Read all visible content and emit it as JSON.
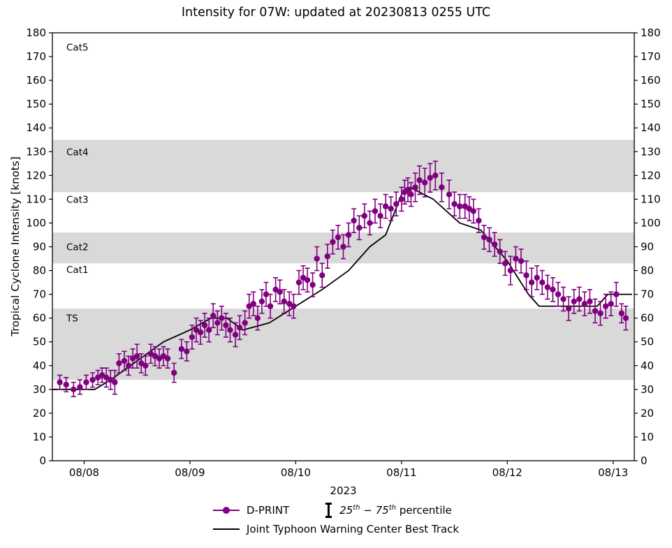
{
  "chart_data": {
    "type": "scatter",
    "title": "Intensity for 07W: updated at 20230813 0255 UTC",
    "ylabel": "Tropical Cyclone Intensity [knots]",
    "xlabel": "2023",
    "ylim": [
      0,
      180
    ],
    "xlim": [
      -0.3,
      5.2
    ],
    "yticks": [
      0,
      10,
      20,
      30,
      40,
      50,
      60,
      70,
      80,
      90,
      100,
      110,
      120,
      130,
      140,
      150,
      160,
      170,
      180
    ],
    "xticks": [
      {
        "pos": 0,
        "label": "08/08"
      },
      {
        "pos": 1,
        "label": "08/09"
      },
      {
        "pos": 2,
        "label": "08/10"
      },
      {
        "pos": 3,
        "label": "08/11"
      },
      {
        "pos": 4,
        "label": "08/12"
      },
      {
        "pos": 5,
        "label": "08/13"
      }
    ],
    "band_color": "#d9d9d9",
    "bands": [
      {
        "from": 34,
        "to": 64
      },
      {
        "from": 83,
        "to": 96
      },
      {
        "from": 113,
        "to": 135
      }
    ],
    "category_labels": [
      {
        "text": "Cat5",
        "y": 174
      },
      {
        "text": "Cat4",
        "y": 130
      },
      {
        "text": "Cat3",
        "y": 110
      },
      {
        "text": "Cat2",
        "y": 90
      },
      {
        "text": "Cat1",
        "y": 80.5
      },
      {
        "text": "TS",
        "y": 60
      }
    ],
    "series": [
      {
        "name": "D-PRINT",
        "type": "scatter_with_error_bars",
        "color": "#800080",
        "points_format": [
          "day_offset_from_0808",
          "knots",
          "percentile_halfwidth"
        ],
        "points": [
          [
            -0.23,
            33,
            3
          ],
          [
            -0.17,
            32,
            3
          ],
          [
            -0.1,
            30,
            3
          ],
          [
            -0.04,
            31,
            3
          ],
          [
            0.02,
            33,
            3
          ],
          [
            0.08,
            34,
            3
          ],
          [
            0.13,
            35,
            3
          ],
          [
            0.17,
            36,
            3
          ],
          [
            0.21,
            35,
            4
          ],
          [
            0.25,
            34,
            4
          ],
          [
            0.29,
            33,
            5
          ],
          [
            0.33,
            41,
            4
          ],
          [
            0.38,
            42,
            4
          ],
          [
            0.42,
            40,
            4
          ],
          [
            0.46,
            43,
            4
          ],
          [
            0.5,
            44,
            5
          ],
          [
            0.54,
            41,
            4
          ],
          [
            0.58,
            40,
            4
          ],
          [
            0.63,
            45,
            4
          ],
          [
            0.67,
            44,
            4
          ],
          [
            0.71,
            43,
            4
          ],
          [
            0.75,
            44,
            4
          ],
          [
            0.79,
            43,
            4
          ],
          [
            0.85,
            37,
            4
          ],
          [
            0.92,
            47,
            4
          ],
          [
            0.97,
            46,
            4
          ],
          [
            1.02,
            52,
            5
          ],
          [
            1.06,
            55,
            5
          ],
          [
            1.1,
            54,
            5
          ],
          [
            1.14,
            57,
            5
          ],
          [
            1.18,
            55,
            5
          ],
          [
            1.22,
            61,
            5
          ],
          [
            1.26,
            58,
            5
          ],
          [
            1.3,
            60,
            5
          ],
          [
            1.34,
            57,
            5
          ],
          [
            1.38,
            55,
            5
          ],
          [
            1.43,
            53,
            5
          ],
          [
            1.47,
            56,
            5
          ],
          [
            1.52,
            58,
            5
          ],
          [
            1.56,
            65,
            5
          ],
          [
            1.6,
            66,
            5
          ],
          [
            1.64,
            60,
            5
          ],
          [
            1.68,
            67,
            5
          ],
          [
            1.72,
            70,
            5
          ],
          [
            1.76,
            65,
            5
          ],
          [
            1.81,
            72,
            5
          ],
          [
            1.85,
            71,
            5
          ],
          [
            1.89,
            67,
            5
          ],
          [
            1.94,
            66,
            5
          ],
          [
            1.98,
            65,
            5
          ],
          [
            2.03,
            75,
            5
          ],
          [
            2.07,
            77,
            5
          ],
          [
            2.11,
            76,
            5
          ],
          [
            2.16,
            74,
            5
          ],
          [
            2.2,
            85,
            5
          ],
          [
            2.25,
            78,
            5
          ],
          [
            2.3,
            86,
            5
          ],
          [
            2.35,
            92,
            5
          ],
          [
            2.4,
            94,
            5
          ],
          [
            2.45,
            90,
            5
          ],
          [
            2.5,
            95,
            5
          ],
          [
            2.55,
            101,
            5
          ],
          [
            2.6,
            98,
            5
          ],
          [
            2.65,
            103,
            5
          ],
          [
            2.7,
            100,
            5
          ],
          [
            2.75,
            105,
            5
          ],
          [
            2.8,
            103,
            5
          ],
          [
            2.85,
            107,
            5
          ],
          [
            2.9,
            106,
            5
          ],
          [
            2.95,
            108,
            5
          ],
          [
            3.0,
            110,
            5
          ],
          [
            3.03,
            113,
            5
          ],
          [
            3.06,
            114,
            5
          ],
          [
            3.09,
            112,
            5
          ],
          [
            3.13,
            115,
            6
          ],
          [
            3.17,
            118,
            6
          ],
          [
            3.22,
            117,
            6
          ],
          [
            3.27,
            119,
            6
          ],
          [
            3.32,
            120,
            6
          ],
          [
            3.38,
            115,
            6
          ],
          [
            3.45,
            112,
            6
          ],
          [
            3.5,
            108,
            5
          ],
          [
            3.55,
            107,
            5
          ],
          [
            3.6,
            107,
            5
          ],
          [
            3.64,
            106,
            5
          ],
          [
            3.68,
            105,
            5
          ],
          [
            3.73,
            101,
            5
          ],
          [
            3.78,
            94,
            5
          ],
          [
            3.83,
            93,
            5
          ],
          [
            3.88,
            91,
            5
          ],
          [
            3.93,
            88,
            5
          ],
          [
            3.98,
            83,
            5
          ],
          [
            4.03,
            80,
            6
          ],
          [
            4.08,
            85,
            5
          ],
          [
            4.13,
            84,
            5
          ],
          [
            4.18,
            78,
            6
          ],
          [
            4.23,
            75,
            6
          ],
          [
            4.28,
            77,
            5
          ],
          [
            4.33,
            75,
            5
          ],
          [
            4.38,
            73,
            5
          ],
          [
            4.43,
            72,
            5
          ],
          [
            4.48,
            70,
            5
          ],
          [
            4.53,
            68,
            5
          ],
          [
            4.58,
            64,
            5
          ],
          [
            4.63,
            67,
            5
          ],
          [
            4.68,
            68,
            5
          ],
          [
            4.73,
            66,
            5
          ],
          [
            4.78,
            67,
            5
          ],
          [
            4.83,
            63,
            5
          ],
          [
            4.88,
            62,
            5
          ],
          [
            4.93,
            65,
            5
          ],
          [
            4.98,
            66,
            5
          ],
          [
            5.03,
            70,
            5
          ],
          [
            5.08,
            62,
            4
          ],
          [
            5.12,
            60,
            5
          ]
        ]
      },
      {
        "name": "Joint Typhoon Warning Center Best Track",
        "type": "line",
        "color": "#000000",
        "points": [
          [
            -0.3,
            30
          ],
          [
            0.1,
            30
          ],
          [
            0.25,
            34
          ],
          [
            0.5,
            42
          ],
          [
            0.75,
            50
          ],
          [
            1.0,
            55
          ],
          [
            1.2,
            60
          ],
          [
            1.35,
            60
          ],
          [
            1.5,
            55
          ],
          [
            1.75,
            58
          ],
          [
            2.0,
            65
          ],
          [
            2.25,
            72
          ],
          [
            2.5,
            80
          ],
          [
            2.7,
            90
          ],
          [
            2.85,
            95
          ],
          [
            3.0,
            112
          ],
          [
            3.08,
            115
          ],
          [
            3.3,
            110
          ],
          [
            3.55,
            100
          ],
          [
            3.75,
            97
          ],
          [
            4.0,
            84
          ],
          [
            4.2,
            70
          ],
          [
            4.3,
            65
          ],
          [
            4.85,
            65
          ],
          [
            4.95,
            70
          ],
          [
            5.18,
            70
          ]
        ]
      }
    ],
    "legend_position": "bottom-center",
    "grid": false
  },
  "legend": {
    "percentile": {
      "p1": "25",
      "sup1": "th",
      "dash": " − 75",
      "p2": "",
      "sup2": "th",
      "rest": " percentile"
    }
  }
}
